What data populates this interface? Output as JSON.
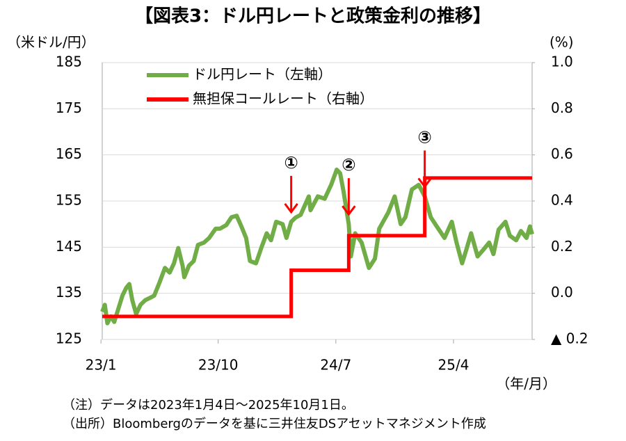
{
  "chart_data": {
    "type": "line",
    "title": "【図表3：ドル円レートと政策金利の推移】",
    "y_label": "（米ドル/円）",
    "y2_label": "(%)",
    "x_label": "（年/月）",
    "notes": [
      "（注）データは2023年1月4日～2025年10月1日。",
      "（出所）Bloombergのデータを基に三井住友DSアセットマネジメント作成"
    ],
    "xlim": [
      "2023-01-04",
      "2025-10-01"
    ],
    "xticks": [
      {
        "value": "2023-01",
        "label": "23/1"
      },
      {
        "value": "2023-10",
        "label": "23/10"
      },
      {
        "value": "2024-07",
        "label": "24/7"
      },
      {
        "value": "2025-04",
        "label": "25/4"
      }
    ],
    "ylim": [
      125,
      185
    ],
    "yticks": [
      125,
      135,
      145,
      155,
      165,
      175,
      185
    ],
    "y2lim": [
      -0.2,
      1.0
    ],
    "y2ticks": [
      {
        "value": -0.2,
        "label": "▲ 0.2"
      },
      {
        "value": 0,
        "label": "0.0"
      },
      0.2,
      0.4,
      0.6,
      0.8,
      {
        "value": 1.0,
        "label": "1.0"
      }
    ],
    "grid": true,
    "legend": "upper left",
    "series": [
      {
        "name": "ドル円レート（左軸）",
        "color": "#70ad47",
        "x": [
          "2023-01-04",
          "2023-01-10",
          "2023-01-16",
          "2023-01-24",
          "2023-02-01",
          "2023-02-10",
          "2023-02-20",
          "2023-03-01",
          "2023-03-08",
          "2023-03-15",
          "2023-03-24",
          "2023-04-03",
          "2023-04-14",
          "2023-04-25",
          "2023-05-05",
          "2023-05-18",
          "2023-05-30",
          "2023-06-10",
          "2023-06-20",
          "2023-06-30",
          "2023-07-10",
          "2023-07-14",
          "2023-07-25",
          "2023-08-05",
          "2023-08-15",
          "2023-08-29",
          "2023-09-10",
          "2023-09-25",
          "2023-10-05",
          "2023-10-20",
          "2023-11-01",
          "2023-11-13",
          "2023-11-24",
          "2023-12-05",
          "2023-12-14",
          "2023-12-28",
          "2024-01-10",
          "2024-01-22",
          "2024-02-01",
          "2024-02-13",
          "2024-02-28",
          "2024-03-08",
          "2024-03-19",
          "2024-03-29",
          "2024-04-10",
          "2024-04-29",
          "2024-05-03",
          "2024-05-20",
          "2024-06-05",
          "2024-06-20",
          "2024-07-03",
          "2024-07-11",
          "2024-07-19",
          "2024-07-31",
          "2024-08-05",
          "2024-08-15",
          "2024-08-30",
          "2024-09-16",
          "2024-09-30",
          "2024-10-10",
          "2024-10-31",
          "2024-11-15",
          "2024-11-29",
          "2024-12-10",
          "2024-12-25",
          "2025-01-10",
          "2025-01-24",
          "2025-02-07",
          "2025-02-21",
          "2025-03-11",
          "2025-03-28",
          "2025-04-08",
          "2025-04-21",
          "2025-05-01",
          "2025-05-12",
          "2025-05-27",
          "2025-06-10",
          "2025-06-23",
          "2025-07-03",
          "2025-07-15",
          "2025-07-31",
          "2025-08-10",
          "2025-08-25",
          "2025-09-05",
          "2025-09-18",
          "2025-09-26",
          "2025-10-01"
        ],
        "values": [
          131,
          132.5,
          128.5,
          130,
          128.8,
          131.5,
          134.5,
          136.2,
          137,
          133.5,
          130.5,
          132.5,
          133.5,
          134,
          134.5,
          137.5,
          140.5,
          139.5,
          141.5,
          144.8,
          141,
          138.5,
          141,
          142,
          145.5,
          146,
          147,
          149,
          149,
          149.8,
          151.5,
          151.8,
          149.5,
          147,
          142,
          141.5,
          145,
          148,
          146.5,
          150.5,
          150,
          147,
          150.5,
          151.4,
          152,
          156,
          153,
          156,
          155.5,
          158.5,
          161.8,
          161,
          157,
          150,
          143,
          148,
          146,
          140.5,
          142.5,
          149,
          152.5,
          156,
          150,
          151.5,
          157.5,
          158.5,
          156,
          151.5,
          149.5,
          147,
          150.5,
          146,
          141.5,
          144.5,
          148,
          143,
          144.5,
          146,
          143.5,
          148.8,
          150.5,
          147.5,
          146.5,
          148.5,
          147,
          149.5,
          147.8
        ]
      },
      {
        "name": "無担保コールレート（右軸）",
        "color": "#ff0000",
        "axis": "y2",
        "line_shape": "step",
        "x": [
          "2023-01-04",
          "2024-03-19",
          "2024-07-31",
          "2025-01-24",
          "2025-10-01"
        ],
        "values": [
          -0.1,
          0.1,
          0.25,
          0.5,
          0.5
        ]
      }
    ],
    "annotations": [
      {
        "text": "①",
        "x": "2024-03-19"
      },
      {
        "text": "②",
        "x": "2024-07-31"
      },
      {
        "text": "③",
        "x": "2025-01-24"
      }
    ]
  }
}
